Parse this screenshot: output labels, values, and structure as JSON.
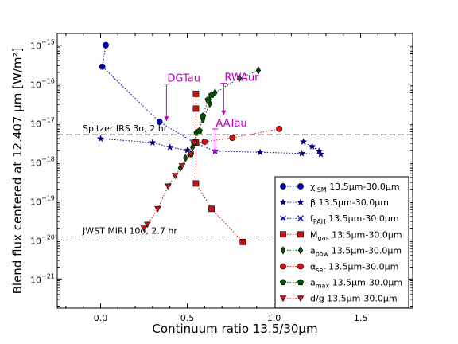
{
  "chart_data": {
    "type": "line",
    "title": "",
    "xlabel": "Continuum ratio 13.5/30μm",
    "ylabel": "Blend flux centered at 12.407 μm [W/m²]",
    "xlim": [
      -0.25,
      1.8
    ],
    "ylim_exp": [
      -21.75,
      -14.7
    ],
    "yscale": "log",
    "x_ticks": [
      0.0,
      0.5,
      1.0,
      1.5
    ],
    "x_tick_labels": [
      "0.0",
      "0.5",
      "1.0",
      "1.5"
    ],
    "y_ticks_exp": [
      -21,
      -20,
      -19,
      -18,
      -17,
      -16,
      -15
    ],
    "y_tick_labels": [
      {
        "base": "10",
        "exp": "−21"
      },
      {
        "base": "10",
        "exp": "−20"
      },
      {
        "base": "10",
        "exp": "−19"
      },
      {
        "base": "10",
        "exp": "−18"
      },
      {
        "base": "10",
        "exp": "−17"
      },
      {
        "base": "10",
        "exp": "−16"
      },
      {
        "base": "10",
        "exp": "−15"
      }
    ],
    "hlines": [
      {
        "label": "Spitzer IRS 3σ, 2 hr",
        "value_exp": -17.3
      },
      {
        "label": "JWST MIRI 10σ, 2.7 hr",
        "value_exp": -19.92
      }
    ],
    "objects": [
      {
        "label": "DGTau",
        "x": 0.38,
        "y_exp_top": -16.0,
        "y_exp_bottom": -16.95
      },
      {
        "label": "RWAur",
        "x": 0.71,
        "y_exp_top": -15.98,
        "y_exp_bottom": -16.8
      },
      {
        "label": "AATau",
        "x": 0.66,
        "y_exp_top": -17.15,
        "y_exp_bottom": -17.8
      }
    ],
    "legend_position": "lower-right",
    "series": [
      {
        "name_main": "χ",
        "name_sub": "ISM",
        "name_rest": " 13.5μm-30.0μm",
        "color": "#0000bf",
        "marker": "circle",
        "points": [
          [
            0.03,
            -15.0
          ],
          [
            0.01,
            -15.55
          ],
          [
            0.34,
            -16.97
          ],
          [
            0.54,
            -17.5
          ]
        ]
      },
      {
        "name_main": "β",
        "name_sub": "",
        "name_rest": " 13.5μm-30.0μm",
        "color": "#000080",
        "marker": "star",
        "points": [
          [
            0.0,
            -17.4
          ],
          [
            0.3,
            -17.5
          ],
          [
            0.4,
            -17.62
          ],
          [
            0.5,
            -17.7
          ],
          [
            0.54,
            -17.5
          ],
          [
            0.66,
            -17.72
          ],
          [
            0.92,
            -17.75
          ],
          [
            1.16,
            -17.78
          ],
          [
            1.27,
            -17.8
          ],
          [
            1.26,
            -17.72
          ],
          [
            1.22,
            -17.6
          ],
          [
            1.17,
            -17.48
          ]
        ]
      },
      {
        "name_main": "f",
        "name_sub": "PAH",
        "name_rest": " 13.5μm-30.0μm",
        "color": "#0000bf",
        "marker": "x",
        "points": [
          [
            0.54,
            -17.5
          ]
        ]
      },
      {
        "name_main": "M",
        "name_sub": "gas",
        "name_rest": " 13.5μm-30.0μm",
        "color": "#cc1111",
        "marker": "square",
        "points": [
          [
            0.55,
            -16.25
          ],
          [
            0.55,
            -16.63
          ],
          [
            0.55,
            -17.5
          ],
          [
            0.55,
            -18.55
          ],
          [
            0.64,
            -19.2
          ],
          [
            0.82,
            -20.05
          ]
        ]
      },
      {
        "name_main": "a",
        "name_sub": "pow",
        "name_rest": " 13.5μm-30.0μm",
        "color": "#005500",
        "marker": "diamond",
        "points": [
          [
            0.46,
            -18.15
          ],
          [
            0.49,
            -17.9
          ],
          [
            0.53,
            -17.62
          ],
          [
            0.54,
            -17.5
          ],
          [
            0.55,
            -17.25
          ],
          [
            0.59,
            -16.9
          ],
          [
            0.63,
            -16.5
          ],
          [
            0.66,
            -16.22
          ],
          [
            0.8,
            -15.85
          ],
          [
            0.91,
            -15.65
          ]
        ]
      },
      {
        "name_main": "α",
        "name_sub": "set",
        "name_rest": " 13.5μm-30.0μm",
        "color": "#dd1111",
        "marker": "circle",
        "points": [
          [
            0.54,
            -17.5
          ],
          [
            0.6,
            -17.48
          ],
          [
            0.76,
            -17.38
          ],
          [
            1.03,
            -17.15
          ]
        ]
      },
      {
        "name_main": "a",
        "name_sub": "max",
        "name_rest": " 13.5μm-30.0μm",
        "color": "#005500",
        "marker": "pentagon",
        "points": [
          [
            0.52,
            -17.8
          ],
          [
            0.54,
            -17.5
          ],
          [
            0.57,
            -17.2
          ],
          [
            0.59,
            -16.82
          ],
          [
            0.62,
            -16.4
          ],
          [
            0.64,
            -16.28
          ]
        ]
      },
      {
        "name_main": "d/g",
        "name_sub": "",
        "name_rest": " 13.5μm-30.0μm",
        "color": "#cc1111",
        "marker": "triangle-down",
        "points": [
          [
            0.54,
            -17.5
          ],
          [
            0.52,
            -17.8
          ],
          [
            0.47,
            -18.1
          ],
          [
            0.43,
            -18.35
          ],
          [
            0.39,
            -18.62
          ],
          [
            0.33,
            -19.2
          ],
          [
            0.27,
            -19.6
          ],
          [
            0.25,
            -19.7
          ]
        ]
      }
    ]
  }
}
